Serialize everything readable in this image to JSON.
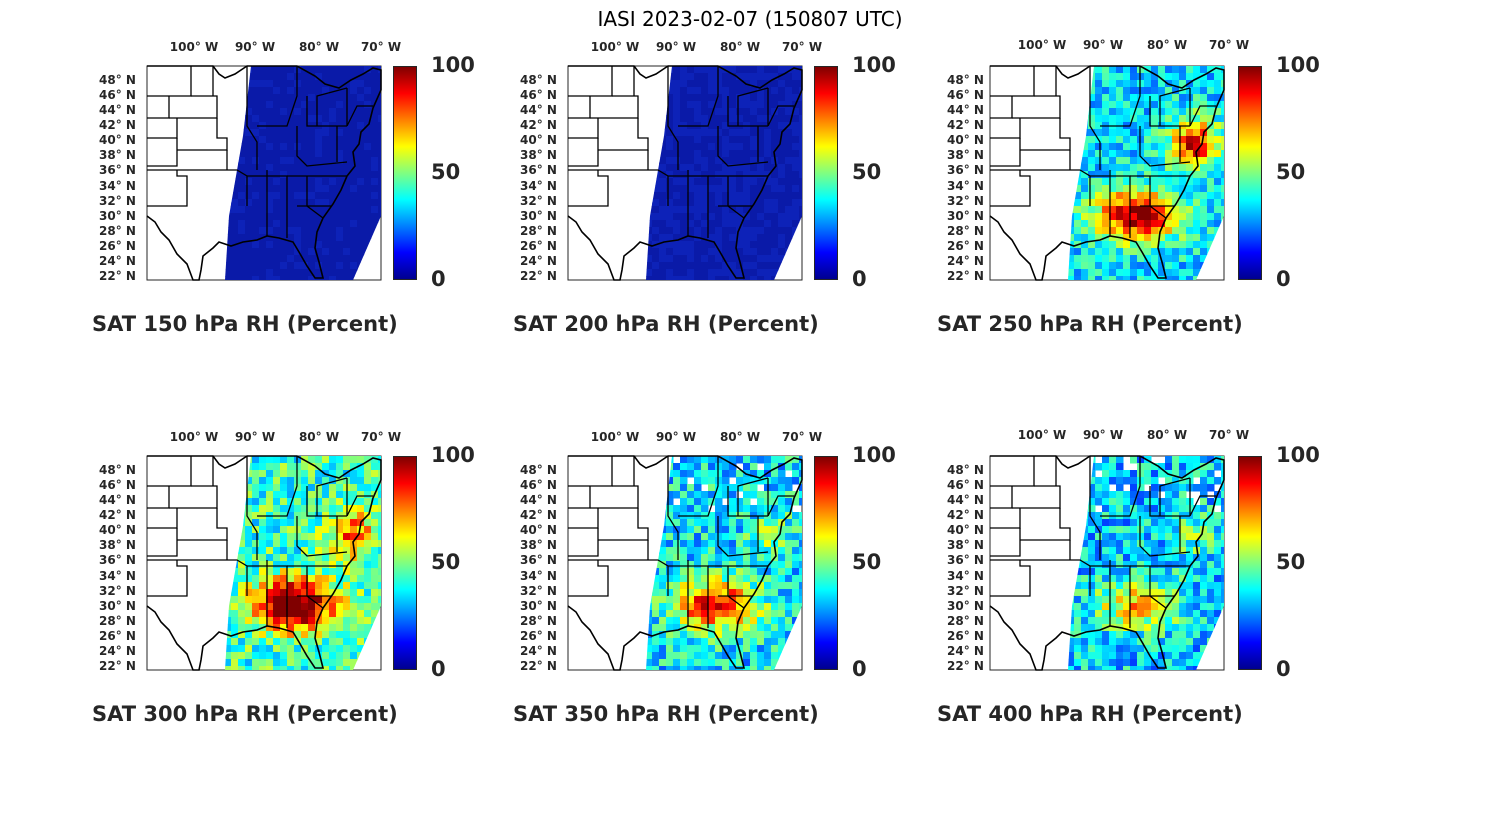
{
  "title": "IASI 2023-02-07 (150807 UTC)",
  "longitude_labels": [
    "100° W",
    "90° W",
    "80° W",
    "70° W"
  ],
  "latitude_labels": [
    "48° N",
    "46° N",
    "44° N",
    "42° N",
    "40° N",
    "38° N",
    "36° N",
    "34° N",
    "32° N",
    "30° N",
    "28° N",
    "26° N",
    "24° N",
    "22° N"
  ],
  "colorbar": {
    "ticks": [
      "100",
      "50",
      "0"
    ],
    "min": 0,
    "max": 100,
    "colormap": "jet"
  },
  "panels": [
    {
      "title": "SAT 150 hPa RH (Percent)",
      "level_hpa": 150
    },
    {
      "title": "SAT 200 hPa RH (Percent)",
      "level_hpa": 200
    },
    {
      "title": "SAT 250 hPa RH (Percent)",
      "level_hpa": 250
    },
    {
      "title": "SAT 300 hPa RH (Percent)",
      "level_hpa": 300
    },
    {
      "title": "SAT 350 hPa RH (Percent)",
      "level_hpa": 350
    },
    {
      "title": "SAT 400 hPa RH (Percent)",
      "level_hpa": 400
    }
  ],
  "colors": {
    "swath_dry": "#0a1aa8",
    "state_lines": "#000000",
    "text": "#262626"
  }
}
